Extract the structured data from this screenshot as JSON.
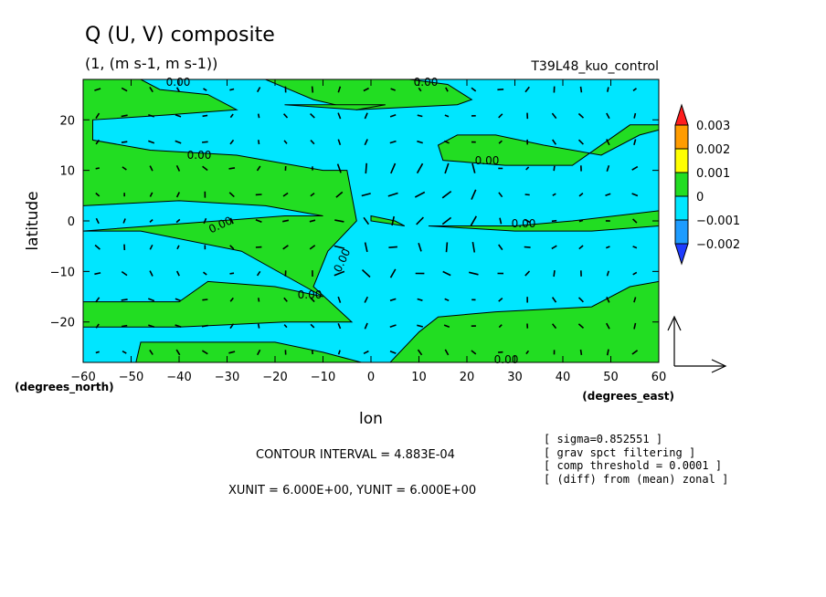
{
  "chart_data": {
    "type": "heatmap",
    "title": "Q (U, V) composite",
    "subtitle": "(1, (m s-1, m s-1))",
    "run_label": "T39L48_kuo_control",
    "xlabel": "lon",
    "x_unit_label": "(degrees_east)",
    "ylabel": "latitude",
    "y_unit_label": "(degrees_north)",
    "xlim": [
      -60,
      60
    ],
    "ylim": [
      -28,
      28
    ],
    "x_ticks": [
      -60,
      -50,
      -40,
      -30,
      -20,
      -10,
      0,
      10,
      20,
      30,
      40,
      50,
      60
    ],
    "y_ticks": [
      20,
      10,
      0,
      -10,
      -20
    ],
    "contour_label": "0.00",
    "colorbar": {
      "labels": [
        "0.003",
        "0.002",
        "0.001",
        "0",
        "−0.001",
        "−0.002"
      ],
      "colors": {
        "above": "#ff1e1e",
        "b3": "#ff9c00",
        "b2": "#ffff00",
        "b1": "#22dd22",
        "b0": "#00e6ff",
        "bm1": "#1e9cff",
        "below": "#1e3cff"
      }
    },
    "footer": {
      "contour_interval": "CONTOUR INTERVAL = 4.883E-04",
      "units": "XUNIT = 6.000E+00, YUNIT = 6.000E+00"
    },
    "notes": [
      "[ sigma=0.852551 ]",
      "[ grav spct filtering ]",
      "[ comp threshold = 0.0001 ]",
      "[ (diff) from (mean) zonal ]"
    ],
    "regions": [
      {
        "sign": "positive",
        "lonlat": [
          [
            -60,
            28
          ],
          [
            -48,
            28
          ],
          [
            -44,
            26
          ],
          [
            -34,
            25
          ],
          [
            -28,
            22
          ],
          [
            -42,
            21
          ],
          [
            -58,
            20
          ],
          [
            -58,
            16
          ],
          [
            -46,
            14
          ],
          [
            -28,
            13
          ],
          [
            -10,
            10
          ],
          [
            -5,
            10
          ],
          [
            -3,
            0
          ],
          [
            -9,
            -6
          ],
          [
            -12,
            -13
          ],
          [
            -4,
            -20
          ],
          [
            -18,
            -20
          ],
          [
            -40,
            -21
          ],
          [
            -60,
            -21
          ],
          [
            -60,
            -16
          ],
          [
            -40,
            -16
          ],
          [
            -34,
            -12
          ],
          [
            -20,
            -13
          ],
          [
            -10,
            -15
          ],
          [
            -27,
            -6
          ],
          [
            -48,
            -2
          ],
          [
            -60,
            -2
          ],
          [
            -18,
            1
          ],
          [
            -10,
            1
          ],
          [
            -22,
            3
          ],
          [
            -40,
            4
          ],
          [
            -60,
            3
          ]
        ]
      },
      {
        "sign": "positive",
        "lonlat": [
          [
            -22,
            28
          ],
          [
            8,
            28
          ],
          [
            16,
            27
          ],
          [
            21,
            24
          ],
          [
            18,
            23
          ],
          [
            -3,
            22
          ],
          [
            -12,
            24
          ],
          [
            -17,
            26
          ]
        ]
      },
      {
        "sign": "positive",
        "lonlat": [
          [
            32,
            28
          ],
          [
            60,
            28
          ],
          [
            60,
            19
          ],
          [
            54,
            19
          ],
          [
            42,
            11
          ],
          [
            28,
            11
          ],
          [
            15,
            12
          ],
          [
            14,
            15
          ],
          [
            18,
            17
          ],
          [
            26,
            17
          ],
          [
            36,
            15
          ],
          [
            48,
            13
          ],
          [
            56,
            17
          ],
          [
            60,
            18
          ],
          [
            60,
            28
          ]
        ]
      },
      {
        "sign": "positive",
        "lonlat": [
          [
            0,
            1
          ],
          [
            5,
            0
          ],
          [
            7,
            -1
          ],
          [
            0,
            0
          ]
        ]
      },
      {
        "sign": "positive",
        "lonlat": [
          [
            12,
            -1
          ],
          [
            30,
            -1
          ],
          [
            42,
            0
          ],
          [
            60,
            2
          ],
          [
            60,
            -1
          ],
          [
            46,
            -2
          ],
          [
            30,
            -2
          ]
        ]
      },
      {
        "sign": "positive",
        "lonlat": [
          [
            4,
            -28
          ],
          [
            60,
            -28
          ],
          [
            60,
            -12
          ],
          [
            54,
            -13
          ],
          [
            46,
            -17
          ],
          [
            26,
            -18
          ],
          [
            14,
            -19
          ],
          [
            10,
            -22
          ],
          [
            6,
            -26
          ]
        ]
      },
      {
        "sign": "positive",
        "lonlat": [
          [
            -60,
            -28
          ],
          [
            -49,
            -28
          ],
          [
            -48,
            -24
          ],
          [
            -20,
            -24
          ],
          [
            -10,
            -26
          ],
          [
            -2,
            -28
          ],
          [
            5,
            -28
          ]
        ]
      },
      {
        "sign": "positive",
        "lonlat": [
          [
            -18,
            23
          ],
          [
            -3,
            22
          ],
          [
            3,
            23
          ]
        ]
      }
    ]
  }
}
